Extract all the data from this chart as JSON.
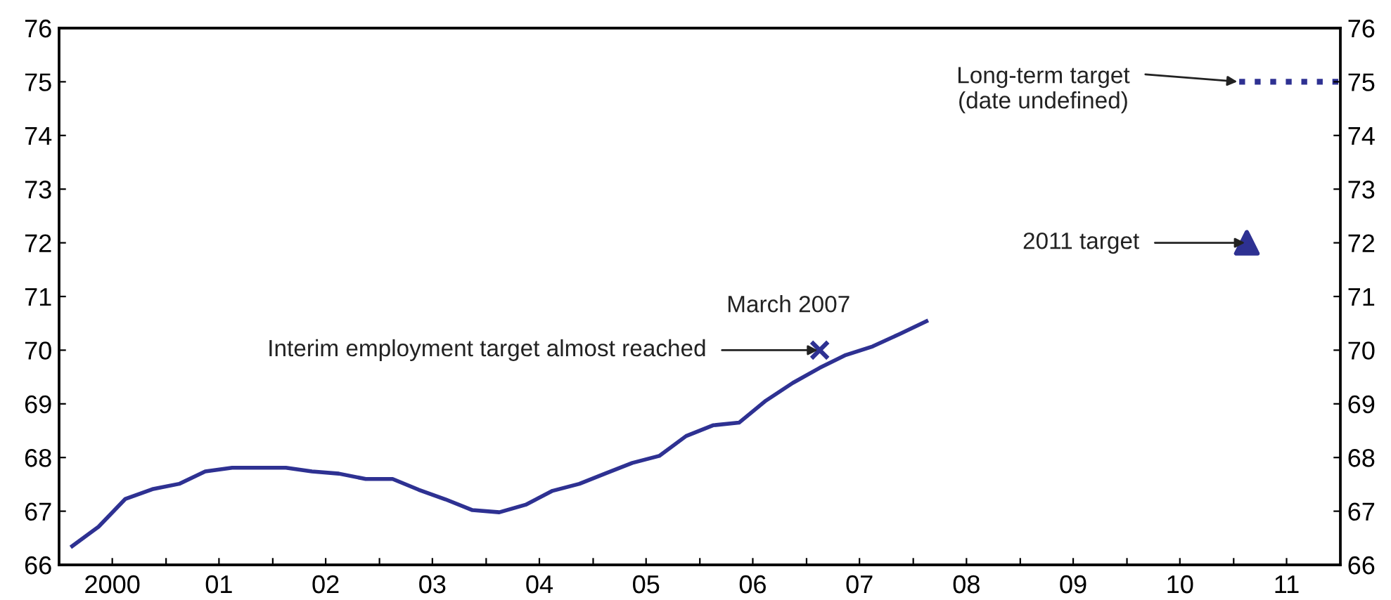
{
  "chart_data": {
    "type": "line",
    "x": [
      "2000-02-15",
      "2000-05-15",
      "2000-08-15",
      "2000-11-15",
      "2001-02-15",
      "2001-05-15",
      "2001-08-15",
      "2001-11-15",
      "2002-02-15",
      "2002-05-15",
      "2002-08-15",
      "2002-11-15",
      "2003-02-15",
      "2003-05-15",
      "2003-08-15",
      "2003-11-15",
      "2004-02-15",
      "2004-05-15",
      "2004-08-15",
      "2004-11-15",
      "2005-02-15",
      "2005-05-15",
      "2005-08-15",
      "2005-11-15",
      "2006-02-15",
      "2006-05-15",
      "2006-08-15",
      "2006-11-15",
      "2007-02-15",
      "2007-05-15",
      "2007-08-15",
      "2007-11-15",
      "2008-02-15"
    ],
    "series": [
      {
        "color": "#2e3192",
        "marker": "none",
        "line_style": "solid",
        "values": [
          66.35,
          66.71,
          67.23,
          67.41,
          67.51,
          67.74,
          67.81,
          67.81,
          67.81,
          67.74,
          67.7,
          67.6,
          67.6,
          67.4,
          67.22,
          67.02,
          66.98,
          67.12,
          67.38,
          67.51,
          67.71,
          67.9,
          68.03,
          68.4,
          68.6,
          68.65,
          69.06,
          69.39,
          69.67,
          69.91,
          70.07,
          70.3,
          70.54
        ]
      },
      {
        "type": "scatter",
        "color": "#2e3192",
        "marker": "cross",
        "x": [
          "2007-02-15"
        ],
        "values": [
          70
        ]
      },
      {
        "type": "scatter",
        "color": "#2e3192",
        "marker": "triangle",
        "x": [
          "2011-02-15"
        ],
        "values": [
          72
        ]
      },
      {
        "type": "line",
        "color": "#2e3192",
        "marker": "none",
        "line_style": "dotted",
        "x": [
          "2011-01-20",
          "2012-01-01"
        ],
        "values": [
          75,
          75
        ]
      }
    ],
    "annotations": [
      {
        "text": "Interim employment target almost reached",
        "x": "2007-02-15",
        "y": 70
      },
      {
        "text": "March 2007",
        "x": "2007-02-15",
        "y": 70
      },
      {
        "text": "2011 target",
        "x": "2011-02-15",
        "y": 72
      },
      {
        "text": "Long-term target\n(date undefined)",
        "x": "2011-01-20",
        "y": 75
      }
    ],
    "xlim": [
      "2000-01-01",
      "2012-01-01"
    ],
    "xticks": [
      {
        "value": "2000-07-01",
        "label": "2000"
      },
      {
        "value": "2001-07-01",
        "label": "01"
      },
      {
        "value": "2002-07-01",
        "label": "02"
      },
      {
        "value": "2003-07-01",
        "label": "03"
      },
      {
        "value": "2004-07-01",
        "label": "04"
      },
      {
        "value": "2005-07-01",
        "label": "05"
      },
      {
        "value": "2006-07-01",
        "label": "06"
      },
      {
        "value": "2007-07-01",
        "label": "07"
      },
      {
        "value": "2008-07-01",
        "label": "08"
      },
      {
        "value": "2009-07-01",
        "label": "09"
      },
      {
        "value": "2010-07-01",
        "label": "10"
      },
      {
        "value": "2011-07-01",
        "label": "11"
      },
      {
        "value": "2001-01-01",
        "label": null
      },
      {
        "value": "2002-01-01",
        "label": null
      },
      {
        "value": "2003-01-01",
        "label": null
      },
      {
        "value": "2004-01-01",
        "label": null
      },
      {
        "value": "2005-01-01",
        "label": null
      },
      {
        "value": "2006-01-01",
        "label": null
      },
      {
        "value": "2007-01-01",
        "label": null
      },
      {
        "value": "2008-01-01",
        "label": null
      },
      {
        "value": "2009-01-01",
        "label": null
      },
      {
        "value": "2010-01-01",
        "label": null
      },
      {
        "value": "2011-01-01",
        "label": null
      }
    ],
    "ylim": [
      66,
      76
    ],
    "yticks": [
      66,
      67,
      68,
      69,
      70,
      71,
      72,
      73,
      74,
      75,
      76
    ],
    "y2lim": [
      66,
      76
    ],
    "y2ticks": [
      66,
      67,
      68,
      69,
      70,
      71,
      72,
      73,
      74,
      75,
      76
    ],
    "grid": false,
    "legend": false
  }
}
